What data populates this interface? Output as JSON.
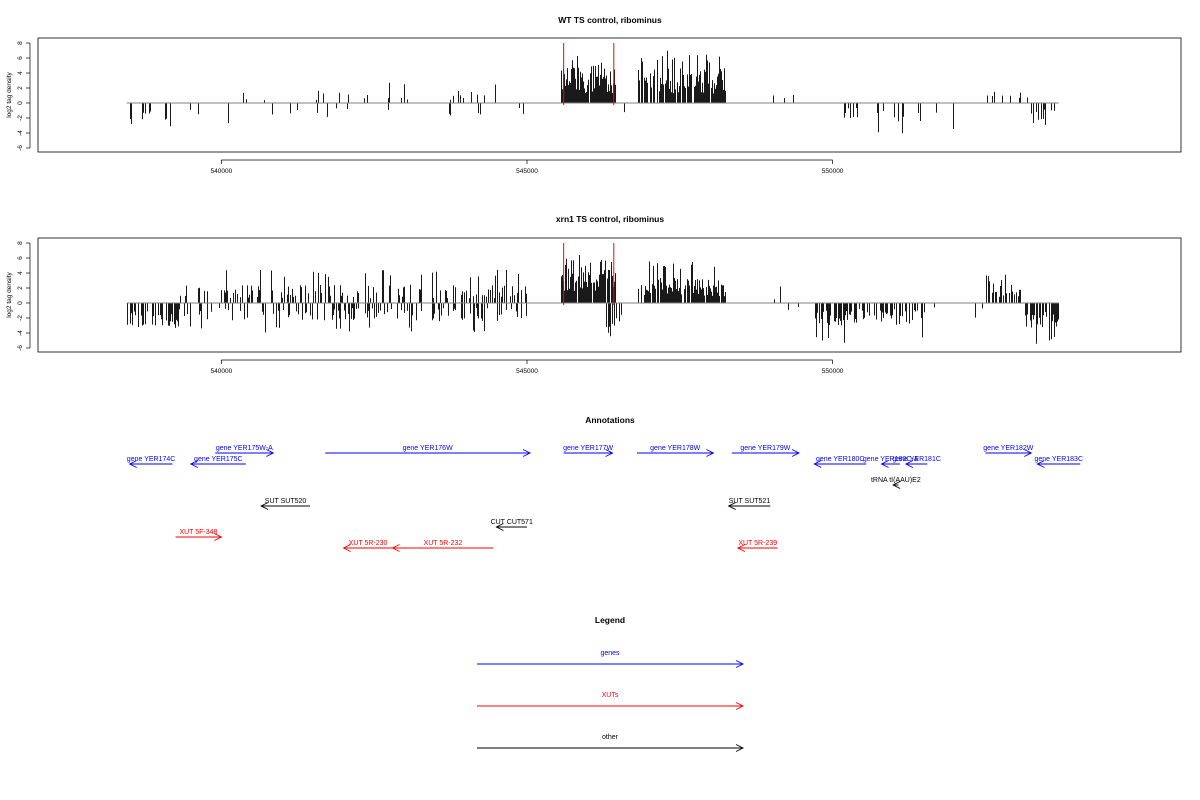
{
  "colors": {
    "genes": "#0000ff",
    "xuts": "#ff0000",
    "other": "#000000",
    "signal": "#000000",
    "highlight": "#ff0000",
    "baseline": "#808080"
  },
  "chart_data": [
    {
      "type": "bar",
      "title": "WT TS control, ribominus",
      "ylabel": "log2 tag density",
      "xlabel": "",
      "xlim": [
        537000,
        555700
      ],
      "ylim": [
        -6,
        8
      ],
      "x_ticks": [
        540000,
        545000,
        550000
      ],
      "y_ticks": [
        -6,
        -4,
        -2,
        0,
        2,
        4,
        6,
        8
      ],
      "signal_regions": [
        {
          "start": 538450,
          "end": 539300,
          "sign": -1,
          "density": 0.15,
          "mean": 2.0,
          "max": 3.5
        },
        {
          "start": 539400,
          "end": 540500,
          "sign": -1,
          "density": 0.05,
          "mean": 1.5,
          "max": 3.0
        },
        {
          "start": 539800,
          "end": 541000,
          "sign": 1,
          "density": 0.05,
          "mean": 1.0,
          "max": 3.0
        },
        {
          "start": 540800,
          "end": 542200,
          "sign": -1,
          "density": 0.06,
          "mean": 1.5,
          "max": 3.0
        },
        {
          "start": 541500,
          "end": 544600,
          "sign": 1,
          "density": 0.12,
          "mean": 1.2,
          "max": 3.2
        },
        {
          "start": 542700,
          "end": 545200,
          "sign": -1,
          "density": 0.07,
          "mean": 1.4,
          "max": 2.5
        },
        {
          "start": 545550,
          "end": 546450,
          "sign": 1,
          "density": 0.95,
          "mean": 3.8,
          "max": 6.5
        },
        {
          "start": 546500,
          "end": 546600,
          "sign": -1,
          "density": 0.3,
          "mean": 1.0,
          "max": 1.6
        },
        {
          "start": 546800,
          "end": 548250,
          "sign": 1,
          "density": 0.9,
          "mean": 3.5,
          "max": 7.0
        },
        {
          "start": 548700,
          "end": 549400,
          "sign": 1,
          "density": 0.03,
          "mean": 0.8,
          "max": 1.5
        },
        {
          "start": 549800,
          "end": 552000,
          "sign": -1,
          "density": 0.12,
          "mean": 1.8,
          "max": 4.2
        },
        {
          "start": 552500,
          "end": 553300,
          "sign": 1,
          "density": 0.08,
          "mean": 1.2,
          "max": 2.5
        },
        {
          "start": 553200,
          "end": 553700,
          "sign": -1,
          "density": 0.3,
          "mean": 1.8,
          "max": 3.3
        }
      ],
      "highlight_lines": [
        545600,
        546420
      ]
    },
    {
      "type": "bar",
      "title": "xrn1 TS control, ribominus",
      "ylabel": "log2 tag density",
      "xlabel": "",
      "xlim": [
        537000,
        555700
      ],
      "ylim": [
        -6,
        8
      ],
      "x_ticks": [
        540000,
        545000,
        550000
      ],
      "y_ticks": [
        -6,
        -4,
        -2,
        0,
        2,
        4,
        6,
        8
      ],
      "signal_regions": [
        {
          "start": 538450,
          "end": 539300,
          "sign": -1,
          "density": 0.6,
          "mean": 2.3,
          "max": 3.8
        },
        {
          "start": 539300,
          "end": 545000,
          "sign": 1,
          "density": 0.35,
          "mean": 1.8,
          "max": 4.5
        },
        {
          "start": 539300,
          "end": 545000,
          "sign": -1,
          "density": 0.3,
          "mean": 1.8,
          "max": 4.0
        },
        {
          "start": 545550,
          "end": 546450,
          "sign": 1,
          "density": 0.95,
          "mean": 4.5,
          "max": 8.0
        },
        {
          "start": 546200,
          "end": 546550,
          "sign": -1,
          "density": 0.5,
          "mean": 2.5,
          "max": 4.8
        },
        {
          "start": 546800,
          "end": 548250,
          "sign": 1,
          "density": 0.85,
          "mean": 2.5,
          "max": 6.0
        },
        {
          "start": 548300,
          "end": 549500,
          "sign": 1,
          "density": 0.04,
          "mean": 1.2,
          "max": 2.5
        },
        {
          "start": 548700,
          "end": 549500,
          "sign": -1,
          "density": 0.04,
          "mean": 1.2,
          "max": 2.0
        },
        {
          "start": 549700,
          "end": 551500,
          "sign": -1,
          "density": 0.6,
          "mean": 2.2,
          "max": 5.5
        },
        {
          "start": 551500,
          "end": 552500,
          "sign": -1,
          "density": 0.1,
          "mean": 1.5,
          "max": 3.0
        },
        {
          "start": 552500,
          "end": 553100,
          "sign": 1,
          "density": 0.7,
          "mean": 2.2,
          "max": 4.0
        },
        {
          "start": 553100,
          "end": 553700,
          "sign": -1,
          "density": 0.7,
          "mean": 2.5,
          "max": 5.5
        }
      ],
      "highlight_lines": [
        545600,
        546420
      ]
    },
    {
      "type": "annotation_track",
      "title": "Annotations",
      "xlim": [
        537000,
        555700
      ],
      "features": [
        {
          "label": "gene YER174C",
          "start": 538500,
          "end": 539200,
          "strand": "-",
          "class": "genes",
          "row": 2
        },
        {
          "label": "gene YER175C",
          "start": 539500,
          "end": 540400,
          "strand": "-",
          "class": "genes",
          "row": 2
        },
        {
          "label": "gene YER175W-A",
          "start": 539900,
          "end": 540850,
          "strand": "+",
          "class": "genes",
          "row": 1
        },
        {
          "label": "gene YER176W",
          "start": 541700,
          "end": 545050,
          "strand": "+",
          "class": "genes",
          "row": 1
        },
        {
          "label": "gene YER177W",
          "start": 545600,
          "end": 546400,
          "strand": "+",
          "class": "genes",
          "row": 1
        },
        {
          "label": "gene YER178W",
          "start": 546800,
          "end": 548050,
          "strand": "+",
          "class": "genes",
          "row": 1
        },
        {
          "label": "gene YER179W",
          "start": 548350,
          "end": 549450,
          "strand": "+",
          "class": "genes",
          "row": 1
        },
        {
          "label": "gene YER180C",
          "start": 549700,
          "end": 550550,
          "strand": "-",
          "class": "genes",
          "row": 2
        },
        {
          "label": "gene YER180C-A",
          "start": 550800,
          "end": 551100,
          "strand": "-",
          "class": "genes",
          "row": 2
        },
        {
          "label": "gene YER181C",
          "start": 551200,
          "end": 551550,
          "strand": "-",
          "class": "genes",
          "row": 2
        },
        {
          "label": "gene YER182W",
          "start": 552500,
          "end": 553250,
          "strand": "+",
          "class": "genes",
          "row": 1
        },
        {
          "label": "gene YER183C",
          "start": 553350,
          "end": 554050,
          "strand": "-",
          "class": "genes",
          "row": 2
        },
        {
          "label": "tRNA tI(AAU)E2",
          "start": 550990,
          "end": 551080,
          "strand": "-",
          "class": "other",
          "row": 3
        },
        {
          "label": "SUT SUT520",
          "start": 540650,
          "end": 541450,
          "strand": "-",
          "class": "other",
          "row": 4
        },
        {
          "label": "SUT SUT521",
          "start": 548300,
          "end": 548980,
          "strand": "-",
          "class": "other",
          "row": 4
        },
        {
          "label": "CUT CUT571",
          "start": 544500,
          "end": 545000,
          "strand": "-",
          "class": "other",
          "row": 5
        },
        {
          "label": "XUT 5F-348",
          "start": 539250,
          "end": 540000,
          "strand": "+",
          "class": "xuts",
          "row": 6
        },
        {
          "label": "XUT 5R-230",
          "start": 542000,
          "end": 542800,
          "strand": "-",
          "class": "xuts",
          "row": 7
        },
        {
          "label": "XUT 5R-232",
          "start": 542800,
          "end": 544450,
          "strand": "-",
          "class": "xuts",
          "row": 7
        },
        {
          "label": "XUT 5R-239",
          "start": 548450,
          "end": 549100,
          "strand": "-",
          "class": "xuts",
          "row": 7
        }
      ]
    },
    {
      "type": "legend",
      "title": "Legend",
      "entries": [
        {
          "label": "genes",
          "class": "genes"
        },
        {
          "label": "XUTs",
          "class": "xuts"
        },
        {
          "label": "other",
          "class": "other"
        }
      ]
    }
  ]
}
